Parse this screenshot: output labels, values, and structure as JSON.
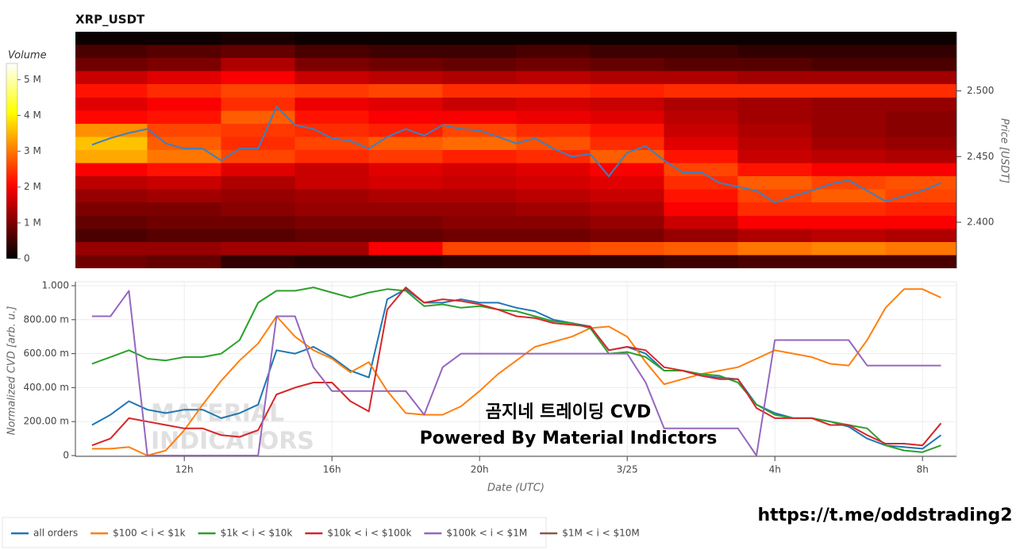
{
  "chart_data": [
    {
      "type": "heatmap",
      "title": "XRP_USDT",
      "x": [
        10,
        12,
        14,
        16,
        18,
        20,
        22,
        24,
        26,
        28,
        30,
        32
      ],
      "y": [
        2.54,
        2.53,
        2.52,
        2.51,
        2.5,
        2.49,
        2.48,
        2.47,
        2.46,
        2.45,
        2.44,
        2.43,
        2.42,
        2.41,
        2.4,
        2.39,
        2.38,
        2.37
      ],
      "z": [
        [
          0.1,
          0.1,
          0.2,
          0.1,
          0.1,
          0.1,
          0.1,
          0.1,
          0.1,
          0.1,
          0.1,
          0.1
        ],
        [
          0.6,
          0.7,
          0.8,
          0.6,
          0.5,
          0.5,
          0.6,
          0.5,
          0.5,
          0.4,
          0.4,
          0.4
        ],
        [
          0.9,
          1.0,
          1.4,
          1.0,
          0.9,
          0.8,
          0.9,
          0.8,
          0.7,
          0.7,
          0.6,
          0.6
        ],
        [
          1.6,
          1.8,
          2.0,
          1.6,
          1.5,
          1.4,
          1.5,
          1.4,
          1.4,
          1.3,
          1.3,
          1.3
        ],
        [
          2.2,
          2.4,
          2.6,
          2.5,
          2.6,
          2.4,
          2.4,
          2.3,
          2.4,
          2.4,
          2.4,
          2.4
        ],
        [
          1.8,
          2.0,
          2.4,
          1.9,
          1.8,
          1.6,
          1.7,
          1.6,
          1.4,
          1.3,
          1.2,
          1.2
        ],
        [
          2.1,
          2.2,
          2.8,
          2.2,
          2.0,
          2.0,
          1.9,
          1.8,
          1.5,
          1.3,
          1.2,
          1.1
        ],
        [
          3.2,
          2.6,
          2.5,
          2.4,
          2.3,
          2.6,
          2.4,
          2.2,
          1.6,
          1.4,
          1.2,
          1.1
        ],
        [
          3.6,
          2.8,
          2.4,
          2.6,
          2.8,
          2.9,
          2.7,
          2.4,
          1.8,
          1.5,
          1.3,
          1.2
        ],
        [
          3.4,
          3.0,
          2.6,
          2.4,
          2.5,
          2.3,
          2.4,
          2.8,
          2.2,
          1.6,
          1.5,
          1.4
        ],
        [
          2.0,
          2.2,
          1.8,
          1.6,
          1.8,
          1.7,
          1.8,
          2.0,
          2.6,
          2.2,
          2.0,
          2.0
        ],
        [
          1.5,
          1.6,
          1.4,
          1.6,
          1.7,
          1.6,
          1.7,
          1.8,
          2.4,
          2.8,
          2.6,
          2.7
        ],
        [
          1.2,
          1.3,
          1.2,
          1.3,
          1.4,
          1.4,
          1.5,
          1.6,
          2.2,
          2.6,
          2.8,
          2.6
        ],
        [
          1.0,
          1.0,
          1.1,
          1.2,
          1.2,
          1.2,
          1.3,
          1.4,
          2.0,
          2.4,
          2.4,
          2.3
        ],
        [
          0.8,
          0.9,
          0.9,
          1.0,
          1.0,
          1.1,
          1.1,
          1.2,
          1.6,
          2.0,
          2.0,
          2.0
        ],
        [
          0.6,
          0.7,
          0.7,
          0.8,
          0.8,
          0.9,
          0.9,
          1.0,
          1.2,
          1.4,
          1.5,
          1.4
        ],
        [
          1.2,
          1.2,
          1.3,
          1.3,
          2.0,
          2.6,
          2.6,
          2.7,
          2.8,
          3.0,
          3.1,
          3.0
        ],
        [
          0.9,
          0.8,
          0.4,
          0.3,
          0.3,
          0.4,
          0.4,
          0.4,
          0.5,
          0.6,
          0.6,
          0.6
        ]
      ],
      "colorscale": "hot",
      "ztitle": "Volume",
      "zlim": [
        0,
        5.45
      ],
      "zticks": [
        0,
        {
          "value": 1,
          "label": "1 M"
        },
        {
          "value": 2,
          "label": "2 M"
        },
        {
          "value": 3,
          "label": "3 M"
        },
        {
          "value": 4,
          "label": "4 M"
        },
        {
          "value": 5,
          "label": "5 M"
        }
      ],
      "xlim": [
        9.05,
        32.92
      ],
      "ylim": [
        2.365,
        2.545
      ],
      "yticks": [
        {
          "value": 2.4,
          "label": "2.400"
        },
        {
          "value": 2.45,
          "label": "2.450"
        },
        {
          "value": 2.5,
          "label": "2.500"
        }
      ],
      "ylabel": "Price [USDT]",
      "line": {
        "color": "#3f7fbf",
        "x": [
          9.5,
          10,
          10.5,
          11,
          11.5,
          12,
          12.5,
          13,
          13.5,
          14,
          14.5,
          15,
          15.5,
          16,
          16.5,
          17,
          17.5,
          18,
          18.5,
          19,
          19.5,
          20,
          20.5,
          21,
          21.5,
          22,
          22.5,
          23,
          23.5,
          24,
          24.5,
          25,
          25.5,
          26,
          26.5,
          27,
          27.5,
          28,
          28.5,
          29,
          29.5,
          30,
          30.5,
          31,
          31.5,
          32,
          32.5
        ],
        "values": [
          2.459,
          2.464,
          2.468,
          2.471,
          2.46,
          2.456,
          2.456,
          2.447,
          2.456,
          2.456,
          2.488,
          2.474,
          2.471,
          2.464,
          2.462,
          2.456,
          2.465,
          2.471,
          2.466,
          2.474,
          2.471,
          2.47,
          2.465,
          2.46,
          2.464,
          2.456,
          2.45,
          2.452,
          2.435,
          2.453,
          2.458,
          2.447,
          2.438,
          2.438,
          2.43,
          2.427,
          2.424,
          2.415,
          2.42,
          2.424,
          2.429,
          2.432,
          2.424,
          2.416,
          2.42,
          2.424,
          2.43
        ]
      }
    },
    {
      "type": "line",
      "xlabel": "Date (UTC)",
      "ylabel": "Normalized CVD [arb. u.]",
      "grid": true,
      "legend": "bottom-left",
      "xlim": [
        9.05,
        32.92
      ],
      "xticks": [
        {
          "value": 12,
          "label": "12h"
        },
        {
          "value": 16,
          "label": "16h"
        },
        {
          "value": 20,
          "label": "20h"
        },
        {
          "value": 24,
          "label": "3/25"
        },
        {
          "value": 28,
          "label": "4h"
        },
        {
          "value": 32,
          "label": "8h"
        }
      ],
      "ylim": [
        0,
        1
      ],
      "yticks": [
        0,
        {
          "value": 0.2,
          "label": "200.00 m"
        },
        {
          "value": 0.4,
          "label": "400.00 m"
        },
        {
          "value": 0.6,
          "label": "600.00 m"
        },
        {
          "value": 0.8,
          "label": "800.00 m"
        },
        {
          "value": 1,
          "label": "1.000"
        }
      ],
      "x": [
        9.5,
        10,
        10.5,
        11,
        11.5,
        12,
        12.5,
        13,
        13.5,
        14,
        14.5,
        15,
        15.5,
        16,
        16.5,
        17,
        17.5,
        18,
        18.5,
        19,
        19.5,
        20,
        20.5,
        21,
        21.5,
        22,
        22.5,
        23,
        23.5,
        24,
        24.5,
        25,
        25.5,
        26,
        26.5,
        27,
        27.5,
        28,
        28.5,
        29,
        29.5,
        30,
        30.5,
        31,
        31.5,
        32,
        32.5
      ],
      "series": [
        {
          "name": "all orders",
          "color": "#1f77b4",
          "values": [
            0.18,
            0.24,
            0.32,
            0.27,
            0.25,
            0.27,
            0.27,
            0.22,
            0.25,
            0.3,
            0.62,
            0.6,
            0.64,
            0.58,
            0.5,
            0.46,
            0.92,
            0.98,
            0.9,
            0.9,
            0.92,
            0.9,
            0.9,
            0.87,
            0.85,
            0.8,
            0.78,
            0.76,
            0.62,
            0.64,
            0.6,
            0.5,
            0.5,
            0.47,
            0.46,
            0.45,
            0.3,
            0.25,
            0.22,
            0.22,
            0.2,
            0.17,
            0.1,
            0.06,
            0.05,
            0.04,
            0.12
          ]
        },
        {
          "name": "$100 < i < $1k",
          "color": "#ff7f0e",
          "values": [
            0.04,
            0.04,
            0.05,
            0,
            0.03,
            0.15,
            0.3,
            0.44,
            0.56,
            0.66,
            0.82,
            0.7,
            0.62,
            0.57,
            0.49,
            0.55,
            0.38,
            0.25,
            0.24,
            0.24,
            0.29,
            0.38,
            0.48,
            0.56,
            0.64,
            0.67,
            0.7,
            0.75,
            0.76,
            0.7,
            0.55,
            0.42,
            0.45,
            0.48,
            0.5,
            0.52,
            0.57,
            0.62,
            0.6,
            0.58,
            0.54,
            0.53,
            0.68,
            0.87,
            0.98,
            0.98,
            0.93
          ]
        },
        {
          "name": "$1k < i < $10k",
          "color": "#2ca02c",
          "values": [
            0.54,
            0.58,
            0.62,
            0.57,
            0.56,
            0.58,
            0.58,
            0.6,
            0.68,
            0.9,
            0.97,
            0.97,
            0.99,
            0.96,
            0.93,
            0.96,
            0.98,
            0.97,
            0.88,
            0.89,
            0.87,
            0.88,
            0.86,
            0.85,
            0.82,
            0.79,
            0.78,
            0.75,
            0.6,
            0.61,
            0.58,
            0.5,
            0.5,
            0.48,
            0.47,
            0.43,
            0.3,
            0.24,
            0.22,
            0.22,
            0.2,
            0.18,
            0.16,
            0.06,
            0.03,
            0.02,
            0.06
          ]
        },
        {
          "name": "$10k < i < $100k",
          "color": "#d62728",
          "values": [
            0.06,
            0.1,
            0.22,
            0.2,
            0.18,
            0.16,
            0.16,
            0.12,
            0.11,
            0.15,
            0.36,
            0.4,
            0.43,
            0.43,
            0.32,
            0.26,
            0.86,
            0.99,
            0.9,
            0.92,
            0.91,
            0.89,
            0.86,
            0.82,
            0.81,
            0.78,
            0.77,
            0.76,
            0.62,
            0.64,
            0.62,
            0.52,
            0.5,
            0.47,
            0.45,
            0.45,
            0.28,
            0.22,
            0.22,
            0.22,
            0.18,
            0.18,
            0.12,
            0.07,
            0.07,
            0.06,
            0.19
          ]
        },
        {
          "name": "$100k < i < $1M",
          "color": "#9467bd",
          "values": [
            0.82,
            0.82,
            0.97,
            0,
            0,
            0,
            0,
            0,
            0,
            0,
            0.82,
            0.82,
            0.52,
            0.38,
            0.38,
            0.38,
            0.38,
            0.38,
            0.24,
            0.52,
            0.6,
            0.6,
            0.6,
            0.6,
            0.6,
            0.6,
            0.6,
            0.6,
            0.6,
            0.6,
            0.43,
            0.16,
            0.16,
            0.16,
            0.16,
            0.16,
            0,
            0.68,
            0.68,
            0.68,
            0.68,
            0.68,
            0.53,
            0.53,
            0.53,
            0.53,
            0.53
          ]
        },
        {
          "name": "$1M < i < $10M",
          "color": "#8c564b",
          "values": [
            null,
            null,
            null,
            null,
            null,
            null,
            null,
            null,
            null,
            null,
            null,
            null,
            null,
            null,
            null,
            null,
            null,
            null,
            null,
            null,
            null,
            null,
            null,
            null,
            null,
            null,
            null,
            null,
            null,
            null,
            null,
            null,
            null,
            null,
            null,
            null,
            null,
            null,
            null,
            null,
            null,
            null,
            null,
            null,
            null,
            null,
            null
          ]
        }
      ]
    }
  ],
  "annotations": {
    "watermark": [
      "MATERIAL",
      "INDICATORS"
    ],
    "overlay": [
      "곰지네 트레이딩 CVD",
      "Powered By Material Indictors"
    ],
    "link": "https://t.me/oddstrading2"
  }
}
